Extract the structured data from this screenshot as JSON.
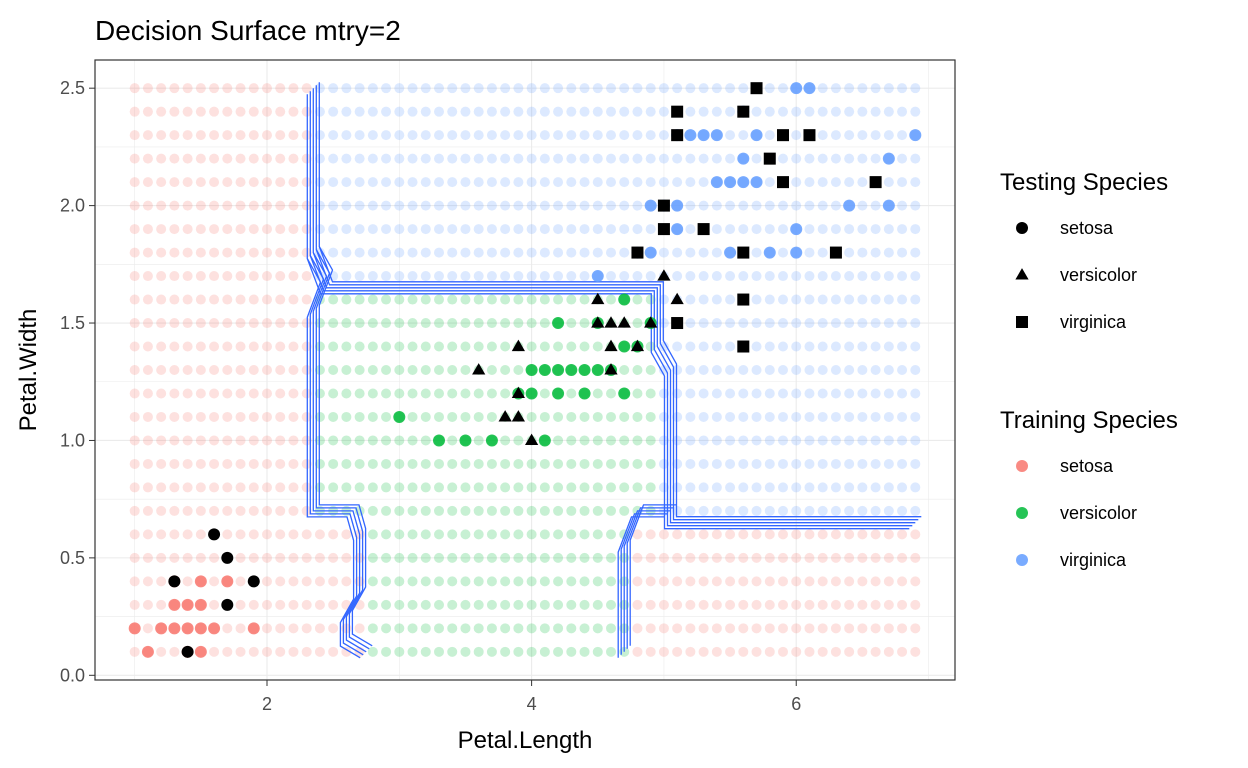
{
  "chart_data": {
    "type": "scatter",
    "title": "Decision Surface mtry=2",
    "xlabel": "Petal.Length",
    "ylabel": "Petal.Width",
    "xlim": [
      0.7,
      7.2
    ],
    "ylim": [
      -0.02,
      2.62
    ],
    "x_ticks": [
      2,
      4,
      6
    ],
    "y_ticks": [
      0.0,
      0.5,
      1.0,
      1.5,
      2.0,
      2.5
    ],
    "y_tick_labels": [
      "0.0",
      "0.5",
      "1.0",
      "1.5",
      "2.0",
      "2.5"
    ],
    "grid": true,
    "legend_placement": "right",
    "colors": {
      "setosa": "#F8766D",
      "versicolor": "#00BA38",
      "virginica": "#619CFF",
      "boundary": "#3366FF",
      "testing": "#000000"
    },
    "surface": {
      "x_start": 1.0,
      "x_step": 0.1,
      "x_count": 60,
      "y_start": 0.1,
      "y_step": 0.1,
      "y_count": 25,
      "regions": [
        {
          "class": "virginica",
          "x": [
            2.35,
            7.0
          ],
          "y": [
            0.05,
            2.55
          ]
        },
        {
          "class": "versicolor",
          "x": [
            2.35,
            4.95
          ],
          "y": [
            0.65,
            1.65
          ]
        },
        {
          "class": "versicolor",
          "x": [
            2.75,
            4.75
          ],
          "y": [
            0.05,
            0.65
          ]
        },
        {
          "class": "setosa",
          "x": [
            0.9,
            2.35
          ],
          "y": [
            0.05,
            2.55
          ]
        },
        {
          "class": "setosa",
          "x": [
            2.35,
            2.75
          ],
          "y": [
            0.05,
            0.65
          ]
        },
        {
          "class": "setosa",
          "x": [
            4.75,
            7.0
          ],
          "y": [
            0.05,
            0.65
          ]
        }
      ]
    },
    "boundary_paths": [
      [
        [
          2.35,
          2.5
        ],
        [
          2.35,
          1.8
        ],
        [
          2.45,
          1.65
        ],
        [
          4.95,
          1.65
        ],
        [
          4.95,
          1.4
        ],
        [
          5.05,
          1.3
        ],
        [
          5.05,
          0.65
        ],
        [
          6.9,
          0.65
        ]
      ],
      [
        [
          2.35,
          1.8
        ],
        [
          2.45,
          1.7
        ],
        [
          2.35,
          1.55
        ],
        [
          2.35,
          0.7
        ],
        [
          2.65,
          0.7
        ],
        [
          2.7,
          0.6
        ],
        [
          2.7,
          0.35
        ],
        [
          2.6,
          0.25
        ],
        [
          2.6,
          0.15
        ],
        [
          2.75,
          0.1
        ]
      ],
      [
        [
          4.7,
          0.1
        ],
        [
          4.7,
          0.55
        ],
        [
          4.8,
          0.7
        ],
        [
          5.05,
          0.7
        ]
      ]
    ],
    "series": [
      {
        "name": "setosa",
        "group": "Training Species",
        "shape": "circle",
        "points": [
          [
            1.0,
            0.2
          ],
          [
            1.1,
            0.1
          ],
          [
            1.2,
            0.2
          ],
          [
            1.3,
            0.2
          ],
          [
            1.3,
            0.3
          ],
          [
            1.3,
            0.4
          ],
          [
            1.4,
            0.1
          ],
          [
            1.4,
            0.2
          ],
          [
            1.4,
            0.3
          ],
          [
            1.5,
            0.1
          ],
          [
            1.5,
            0.2
          ],
          [
            1.5,
            0.3
          ],
          [
            1.5,
            0.4
          ],
          [
            1.6,
            0.2
          ],
          [
            1.7,
            0.4
          ],
          [
            1.9,
            0.2
          ]
        ]
      },
      {
        "name": "versicolor",
        "group": "Training Species",
        "shape": "circle",
        "points": [
          [
            3.0,
            1.1
          ],
          [
            3.3,
            1.0
          ],
          [
            3.5,
            1.0
          ],
          [
            3.7,
            1.0
          ],
          [
            3.9,
            1.2
          ],
          [
            4.0,
            1.3
          ],
          [
            4.0,
            1.2
          ],
          [
            4.1,
            1.3
          ],
          [
            4.1,
            1.0
          ],
          [
            4.2,
            1.3
          ],
          [
            4.2,
            1.2
          ],
          [
            4.2,
            1.5
          ],
          [
            4.3,
            1.3
          ],
          [
            4.4,
            1.3
          ],
          [
            4.4,
            1.2
          ],
          [
            4.5,
            1.3
          ],
          [
            4.5,
            1.5
          ],
          [
            4.6,
            1.3
          ],
          [
            4.7,
            1.4
          ],
          [
            4.7,
            1.6
          ],
          [
            4.7,
            1.2
          ],
          [
            4.8,
            1.4
          ],
          [
            4.9,
            1.5
          ]
        ]
      },
      {
        "name": "virginica",
        "group": "Training Species",
        "shape": "circle",
        "points": [
          [
            4.5,
            1.7
          ],
          [
            4.8,
            1.8
          ],
          [
            4.9,
            1.8
          ],
          [
            4.9,
            2.0
          ],
          [
            5.0,
            2.0
          ],
          [
            5.1,
            2.0
          ],
          [
            5.1,
            1.9
          ],
          [
            5.1,
            2.3
          ],
          [
            5.2,
            2.3
          ],
          [
            5.3,
            2.3
          ],
          [
            5.4,
            2.3
          ],
          [
            5.4,
            2.1
          ],
          [
            5.5,
            2.1
          ],
          [
            5.5,
            1.8
          ],
          [
            5.6,
            2.1
          ],
          [
            5.6,
            2.4
          ],
          [
            5.6,
            2.2
          ],
          [
            5.7,
            2.1
          ],
          [
            5.7,
            2.3
          ],
          [
            5.8,
            1.8
          ],
          [
            6.0,
            1.8
          ],
          [
            6.0,
            2.5
          ],
          [
            6.1,
            2.5
          ],
          [
            6.0,
            1.9
          ],
          [
            6.4,
            2.0
          ],
          [
            6.7,
            2.2
          ],
          [
            6.7,
            2.0
          ],
          [
            6.9,
            2.3
          ]
        ]
      },
      {
        "name": "setosa",
        "group": "Testing Species",
        "shape": "circle",
        "points": [
          [
            1.3,
            0.4
          ],
          [
            1.4,
            0.1
          ],
          [
            1.6,
            0.6
          ],
          [
            1.7,
            0.5
          ],
          [
            1.7,
            0.3
          ],
          [
            1.9,
            0.4
          ]
        ]
      },
      {
        "name": "versicolor",
        "group": "Testing Species",
        "shape": "triangle",
        "points": [
          [
            3.6,
            1.3
          ],
          [
            3.8,
            1.1
          ],
          [
            3.9,
            1.1
          ],
          [
            3.9,
            1.2
          ],
          [
            3.9,
            1.4
          ],
          [
            4.0,
            1.0
          ],
          [
            4.5,
            1.5
          ],
          [
            4.5,
            1.6
          ],
          [
            4.6,
            1.5
          ],
          [
            4.6,
            1.4
          ],
          [
            4.6,
            1.3
          ],
          [
            4.7,
            1.5
          ],
          [
            4.8,
            1.4
          ],
          [
            4.9,
            1.5
          ],
          [
            5.0,
            1.7
          ],
          [
            5.1,
            1.6
          ]
        ]
      },
      {
        "name": "virginica",
        "group": "Testing Species",
        "shape": "square",
        "points": [
          [
            4.8,
            1.8
          ],
          [
            5.0,
            1.9
          ],
          [
            5.0,
            2.0
          ],
          [
            5.1,
            1.5
          ],
          [
            5.1,
            2.3
          ],
          [
            5.1,
            2.4
          ],
          [
            5.3,
            1.9
          ],
          [
            5.6,
            1.4
          ],
          [
            5.6,
            1.6
          ],
          [
            5.6,
            1.8
          ],
          [
            5.6,
            2.4
          ],
          [
            5.7,
            2.5
          ],
          [
            5.8,
            2.2
          ],
          [
            5.9,
            2.1
          ],
          [
            5.9,
            2.3
          ],
          [
            6.1,
            2.3
          ],
          [
            6.3,
            1.8
          ],
          [
            6.6,
            2.1
          ]
        ]
      }
    ],
    "legends": [
      {
        "title": "Testing Species",
        "items": [
          {
            "label": "setosa",
            "shape": "circle",
            "color": "#000000"
          },
          {
            "label": "versicolor",
            "shape": "triangle",
            "color": "#000000"
          },
          {
            "label": "virginica",
            "shape": "square",
            "color": "#000000"
          }
        ]
      },
      {
        "title": "Training Species",
        "items": [
          {
            "label": "setosa",
            "shape": "circle",
            "color": "#F8766D"
          },
          {
            "label": "versicolor",
            "shape": "circle",
            "color": "#00BA38"
          },
          {
            "label": "virginica",
            "shape": "circle",
            "color": "#619CFF"
          }
        ]
      }
    ]
  }
}
